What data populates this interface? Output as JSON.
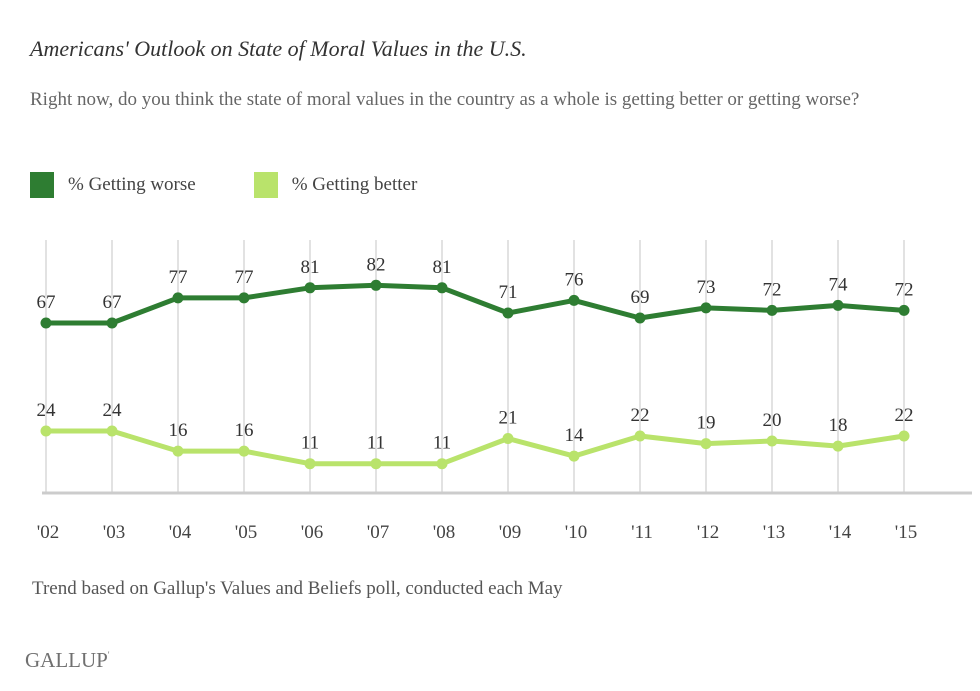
{
  "title": "Americans' Outlook on State of Moral Values in the U.S.",
  "subtitle": "Right now, do you think the state of moral values in the country as a whole is getting better or getting worse?",
  "note": "Trend based on Gallup's Values and Beliefs poll, conducted each May",
  "brand": "GALLUP",
  "brand_mark": "'",
  "colors": {
    "worse": "#2e7d32",
    "better": "#b9e36b",
    "grid": "#d9d9d9",
    "axis": "#cccccc"
  },
  "legend": [
    {
      "label": "% Getting worse",
      "series": "worse"
    },
    {
      "label": "% Getting better",
      "series": "better"
    }
  ],
  "chart_data": {
    "type": "line",
    "title": "Americans' Outlook on State of Moral Values in the U.S.",
    "xlabel": "",
    "ylabel": "",
    "x": [
      "'02",
      "'03",
      "'04",
      "'05",
      "'06",
      "'07",
      "'08",
      "'09",
      "'10",
      "'11",
      "'12",
      "'13",
      "'14",
      "'15"
    ],
    "ylim": [
      0,
      100
    ],
    "grid": "vertical",
    "legend_position": "top-left",
    "data_labels": true,
    "series": [
      {
        "name": "% Getting worse",
        "key": "worse",
        "values": [
          67,
          67,
          77,
          77,
          81,
          82,
          81,
          71,
          76,
          69,
          73,
          72,
          74,
          72
        ]
      },
      {
        "name": "% Getting better",
        "key": "better",
        "values": [
          24,
          24,
          16,
          16,
          11,
          11,
          11,
          21,
          14,
          22,
          19,
          20,
          18,
          22
        ]
      }
    ]
  }
}
